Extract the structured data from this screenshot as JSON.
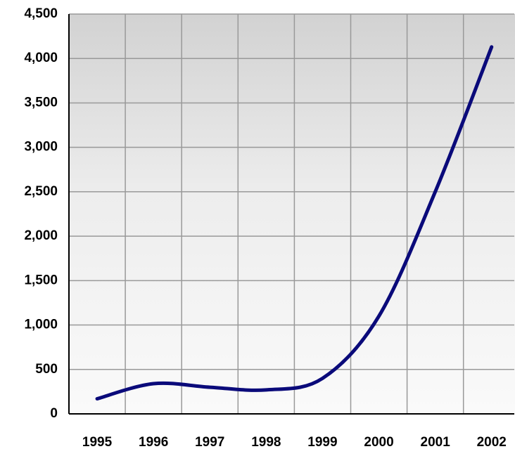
{
  "chart_data": {
    "type": "line",
    "categories": [
      "1995",
      "1996",
      "1997",
      "1998",
      "1999",
      "2000",
      "2001",
      "2002"
    ],
    "series": [
      {
        "color": "#0a0a7a",
        "values": [
          170,
          340,
          300,
          270,
          400,
          1100,
          2500,
          4130
        ]
      }
    ],
    "ylim": [
      0,
      4500
    ],
    "yticks": [
      0,
      500,
      {
        "value": 1000,
        "label": "1,000"
      },
      {
        "value": 1500,
        "label": "1,500"
      },
      {
        "value": 2000,
        "label": "2,000"
      },
      {
        "value": 2500,
        "label": "2,500"
      },
      {
        "value": 3000,
        "label": "3,000"
      },
      {
        "value": 3500,
        "label": "3,500"
      },
      {
        "value": 4000,
        "label": "4,000"
      },
      {
        "value": 4500,
        "label": "4,500"
      }
    ],
    "grid": true
  }
}
